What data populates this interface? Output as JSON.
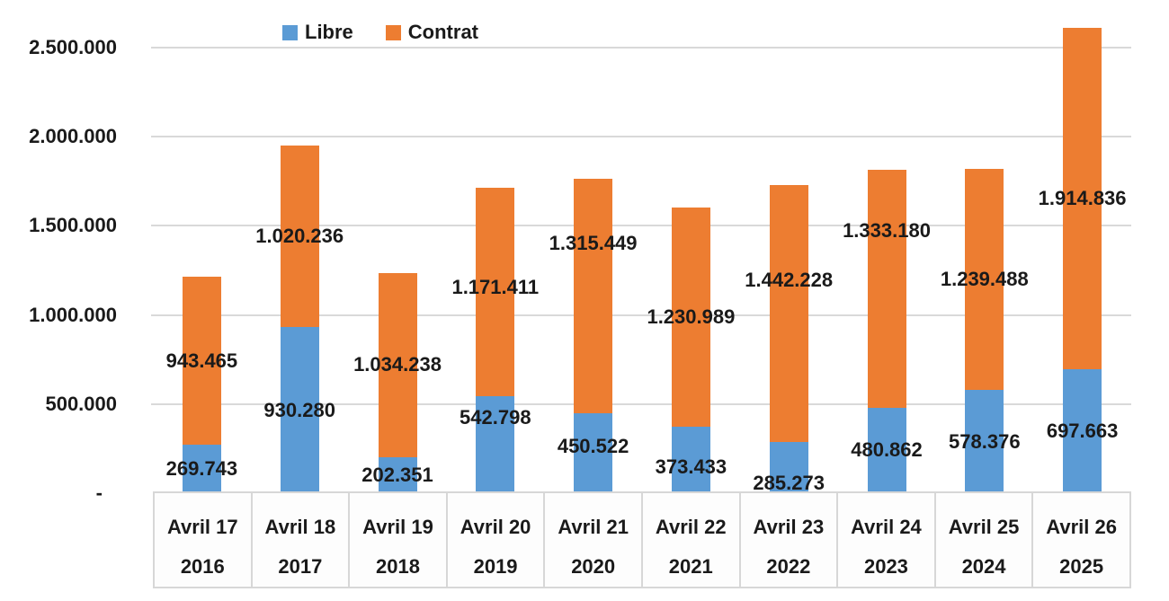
{
  "chart_data": {
    "type": "bar",
    "variant": "stacked-column",
    "title": "",
    "grid": "horizontal",
    "legend": {
      "position": "top"
    },
    "x_axis": {
      "categories": [
        "Avril 17",
        "Avril 18",
        "Avril 19",
        "Avril 20",
        "Avril 21",
        "Avril 22",
        "Avril 23",
        "Avril 24",
        "Avril 25",
        "Avril 26"
      ],
      "years": [
        "2016",
        "2017",
        "2018",
        "2019",
        "2020",
        "2021",
        "2022",
        "2023",
        "2024",
        "2025"
      ]
    },
    "y_axis": {
      "min": 0,
      "max": 2500000,
      "step": 500000,
      "tick_labels": [
        "-",
        "500.000",
        "1.000.000",
        "1.500.000",
        "2.000.000",
        "2.500.000"
      ]
    },
    "series": [
      {
        "name": "Libre",
        "color": "#5B9BD5",
        "values": [
          269743,
          930280,
          202351,
          542798,
          450522,
          373433,
          285273,
          480862,
          578376,
          697663
        ],
        "labels": [
          "269.743",
          "930.280",
          "202.351",
          "542.798",
          "450.522",
          "373.433",
          "285.273",
          "480.862",
          "578.376",
          "697.663"
        ]
      },
      {
        "name": "Contrat",
        "color": "#ED7D31",
        "values": [
          943465,
          1020236,
          1034238,
          1171411,
          1315449,
          1230989,
          1442228,
          1333180,
          1239488,
          1914836
        ],
        "labels": [
          "943.465",
          "1.020.236",
          "1.034.238",
          "1.171.411",
          "1.315.449",
          "1.230.989",
          "1.442.228",
          "1.333.180",
          "1.239.488",
          "1.914.836"
        ]
      }
    ],
    "layout_hints": {
      "label_dy": [
        [
          0,
          0,
          0,
          -30,
          -7,
          8,
          17,
          0,
          0,
          0
        ],
        [
          0,
          0,
          0,
          -5,
          -58,
          0,
          -37,
          -64,
          0,
          0
        ]
      ]
    }
  }
}
